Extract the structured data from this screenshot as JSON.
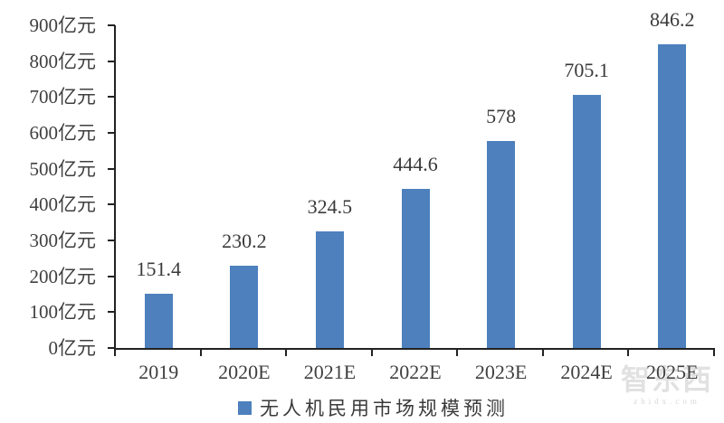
{
  "chart_data": {
    "type": "bar",
    "title": "",
    "categories": [
      "2019",
      "2020E",
      "2021E",
      "2022E",
      "2023E",
      "2024E",
      "2025E"
    ],
    "values": [
      151.4,
      230.2,
      324.5,
      444.6,
      578,
      705.1,
      846.2
    ],
    "series_name": "无人机民用市场规模预测",
    "xlabel": "",
    "ylabel": "",
    "ylim": [
      0,
      900
    ],
    "y_ticks": [
      0,
      100,
      200,
      300,
      400,
      500,
      600,
      700,
      800,
      900
    ],
    "y_tick_unit": "亿元",
    "grid": false,
    "legend_position": "bottom",
    "bar_color": "#4d80bd",
    "axis_color": "#222222",
    "text_color": "#3a3a3a"
  },
  "legend": {
    "label": "无人机民用市场规模预测",
    "swatch_color": "#4d80bd"
  },
  "watermark": {
    "text": "智东西",
    "subtext": "zhidx.com"
  }
}
